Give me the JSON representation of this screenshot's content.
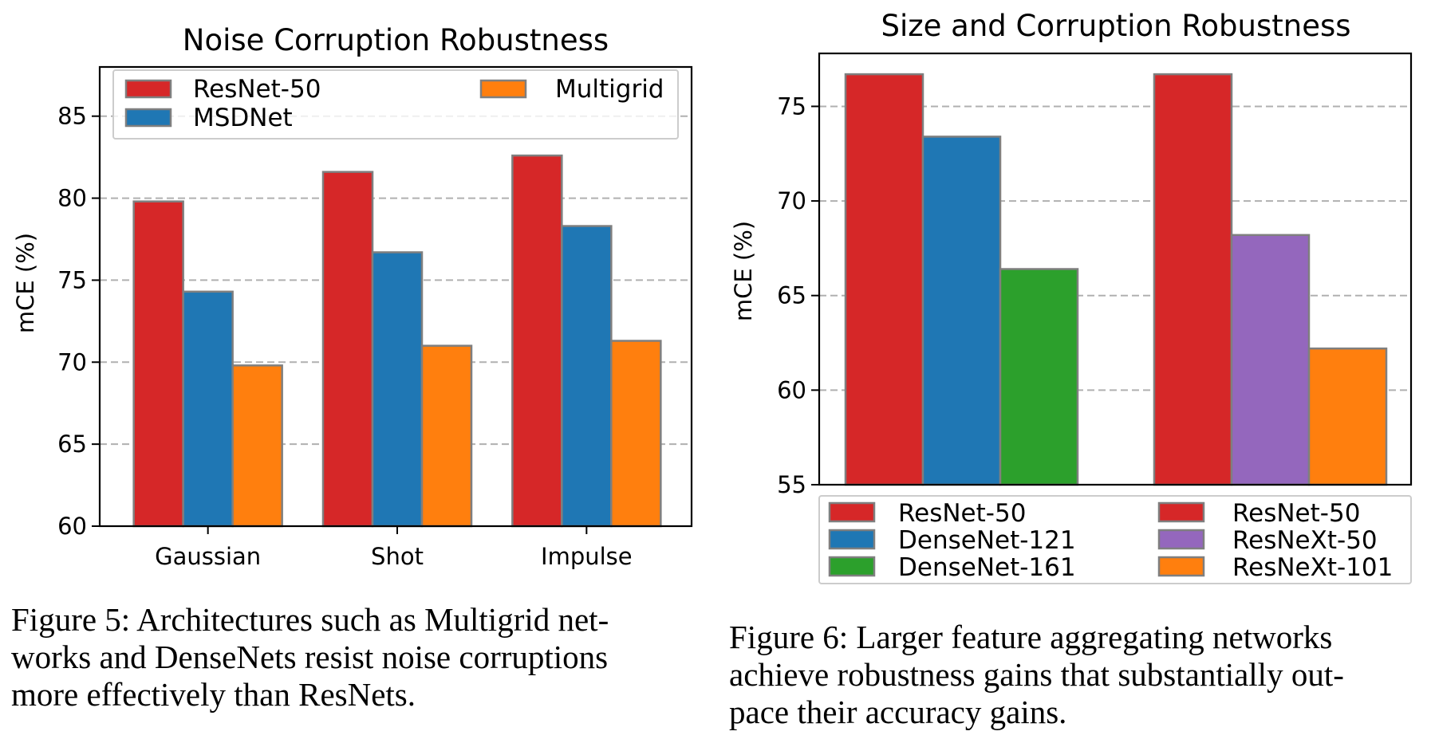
{
  "chart_data": [
    {
      "type": "bar",
      "title": "Noise Corruption Robustness",
      "ylabel": "mCE (%)",
      "xlabel": "",
      "ylim": [
        60,
        88
      ],
      "yticks": [
        60,
        65,
        70,
        75,
        80,
        85
      ],
      "grid": "horizontal dashed",
      "legend_placement": "top",
      "categories": [
        "Gaussian",
        "Shot",
        "Impulse"
      ],
      "series": [
        {
          "name": "ResNet-50",
          "color": "#d62728",
          "values": [
            79.8,
            81.6,
            82.6
          ]
        },
        {
          "name": "MSDNet",
          "color": "#1f77b4",
          "values": [
            74.3,
            76.7,
            78.3
          ]
        },
        {
          "name": "Multigrid",
          "color": "#ff7f0e",
          "values": [
            69.8,
            71.0,
            71.3
          ]
        }
      ]
    },
    {
      "type": "bar",
      "title": "Size and Corruption Robustness",
      "ylabel": "mCE (%)",
      "xlabel": "",
      "ylim": [
        55,
        77.8
      ],
      "yticks": [
        55,
        60,
        65,
        70,
        75
      ],
      "grid": "horizontal dashed",
      "legend_placement": "bottom",
      "groups": [
        {
          "bars": [
            {
              "name": "ResNet-50",
              "color": "#d62728",
              "value": 76.7
            },
            {
              "name": "DenseNet-121",
              "color": "#1f77b4",
              "value": 73.4
            },
            {
              "name": "DenseNet-161",
              "color": "#2ca02c",
              "value": 66.4
            }
          ]
        },
        {
          "bars": [
            {
              "name": "ResNet-50",
              "color": "#d62728",
              "value": 76.7
            },
            {
              "name": "ResNeXt-50",
              "color": "#9467bd",
              "value": 68.2
            },
            {
              "name": "ResNeXt-101",
              "color": "#ff7f0e",
              "value": 62.2
            }
          ]
        }
      ]
    }
  ],
  "captions": {
    "figure5": [
      "Figure 5: Architectures such as Multigrid net-",
      "works and DenseNets resist noise corruptions",
      "more effectively than ResNets."
    ],
    "figure6": [
      "Figure 6: Larger feature aggregating networks",
      "achieve robustness gains that substantially out-",
      "pace their accuracy gains."
    ]
  }
}
